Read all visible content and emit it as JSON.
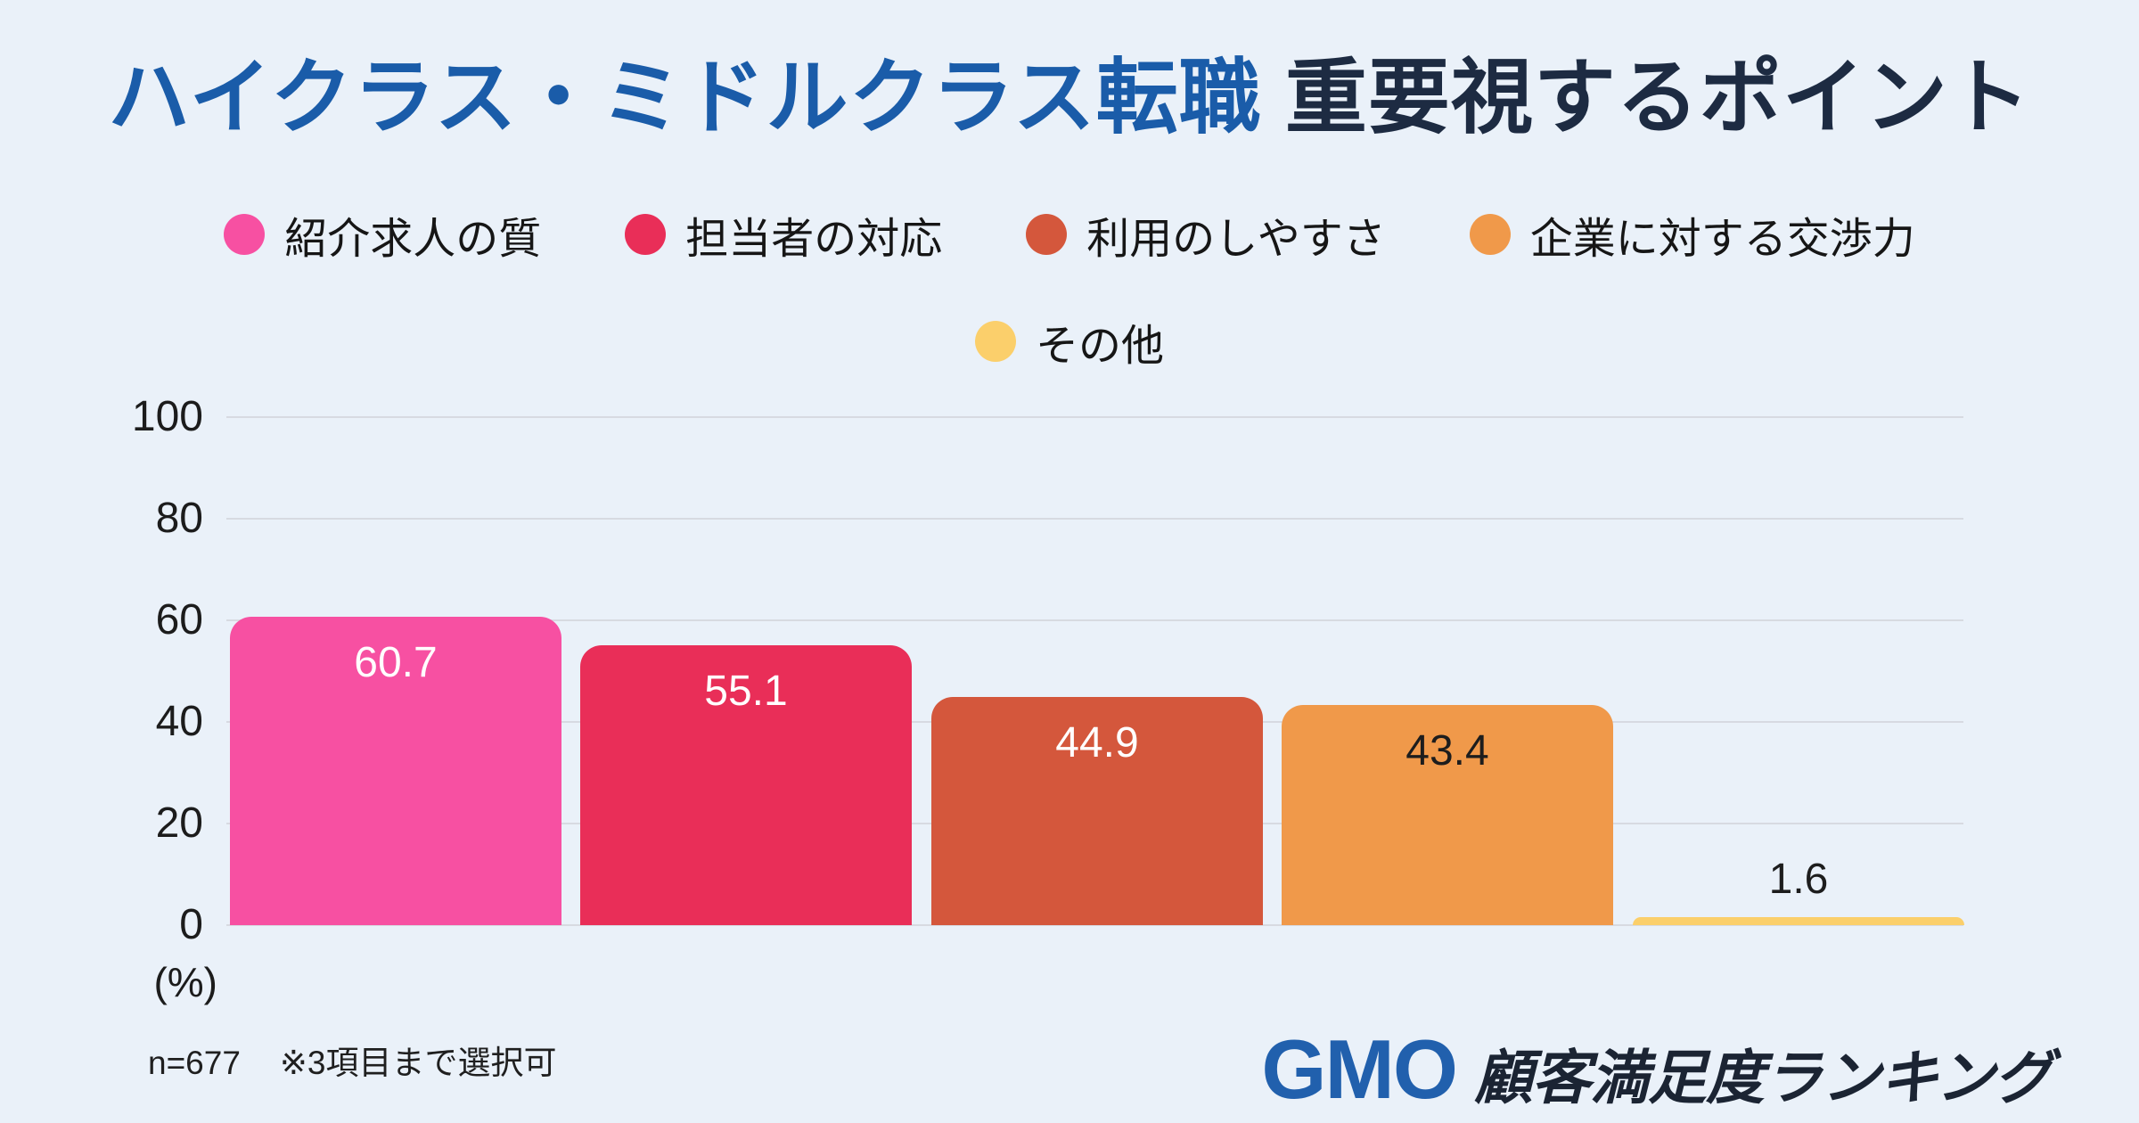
{
  "title": {
    "blue": "ハイクラス・ミドルクラス転職",
    "dark": "重要視するポイント"
  },
  "legend": {
    "rows": [
      [
        {
          "label": "紹介求人の質",
          "color": "#f750a2"
        },
        {
          "label": "担当者の対応",
          "color": "#e92e58"
        },
        {
          "label": "利用のしやすさ",
          "color": "#d4573c"
        },
        {
          "label": "企業に対する交渉力",
          "color": "#f0994a"
        }
      ],
      [
        {
          "label": "その他",
          "color": "#fbcf6b"
        }
      ]
    ]
  },
  "chart_data": {
    "type": "bar",
    "title": "ハイクラス・ミドルクラス転職 重要視するポイント",
    "categories": [
      "紹介求人の質",
      "担当者の対応",
      "利用のしやすさ",
      "企業に対する交渉力",
      "その他"
    ],
    "values": [
      60.7,
      55.1,
      44.9,
      43.4,
      1.6
    ],
    "series_colors": [
      "#f750a2",
      "#e92e58",
      "#d4573c",
      "#f0994a",
      "#fbcf6b"
    ],
    "value_label_colors": [
      "#ffffff",
      "#ffffff",
      "#ffffff",
      "#1d1d1d",
      "#1d1d1d"
    ],
    "xlabel": "",
    "ylabel": "(%)",
    "ylim": [
      0,
      100
    ],
    "yticks": [
      100,
      80,
      60,
      40,
      20,
      0
    ],
    "grid": true,
    "legend_position": "top"
  },
  "axis": {
    "unit_label": "(%)"
  },
  "footnote": {
    "sample": "n=677",
    "note": "※3項目まで選択可"
  },
  "logo": {
    "gmo": "GMO",
    "service": "顧客満足度ランキング"
  },
  "colors": {
    "background": "#eaf1f9",
    "title_blue": "#1a5ca9",
    "title_dark": "#1d2b42",
    "gridline": "#d7dae1",
    "logo_blue": "#2160ad",
    "logo_dark": "#1b2433"
  }
}
